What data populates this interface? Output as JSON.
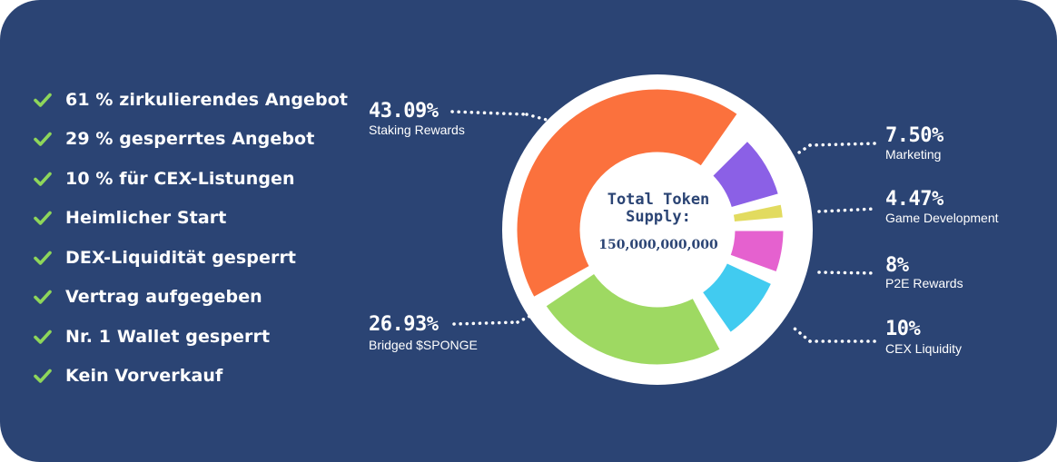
{
  "features": [
    "61 % zirkulierendes Angebot",
    "29 % gesperrtes Angebot",
    "10 % für CEX-Listungen",
    "Heimlicher Start",
    "DEX-Liquidität gesperrt",
    "Vertrag aufgegeben",
    "Nr. 1 Wallet gesperrt",
    "Kein Vorverkauf"
  ],
  "colors": {
    "background": "#2b4474",
    "check": "#8ed65a",
    "text": "#ffffff"
  },
  "center": {
    "title": "Total Token Supply:",
    "value": "150,000,000,000"
  },
  "chart_data": {
    "type": "pie",
    "title": "",
    "labels": [
      "Staking Rewards",
      "Marketing",
      "Game Development",
      "P2E Rewards",
      "CEX Liquidity",
      "Bridged $SPONGE"
    ],
    "values": [
      43.09,
      7.5,
      4.47,
      8,
      10,
      26.93
    ],
    "display": [
      "43.09%",
      "7.50%",
      "4.47%",
      "8%",
      "10%",
      "26.93%"
    ],
    "colors": [
      "#fb713d",
      "#8b60e6",
      "#e2db5f",
      "#e561cf",
      "#41cbf0",
      "#9ed962"
    ]
  }
}
